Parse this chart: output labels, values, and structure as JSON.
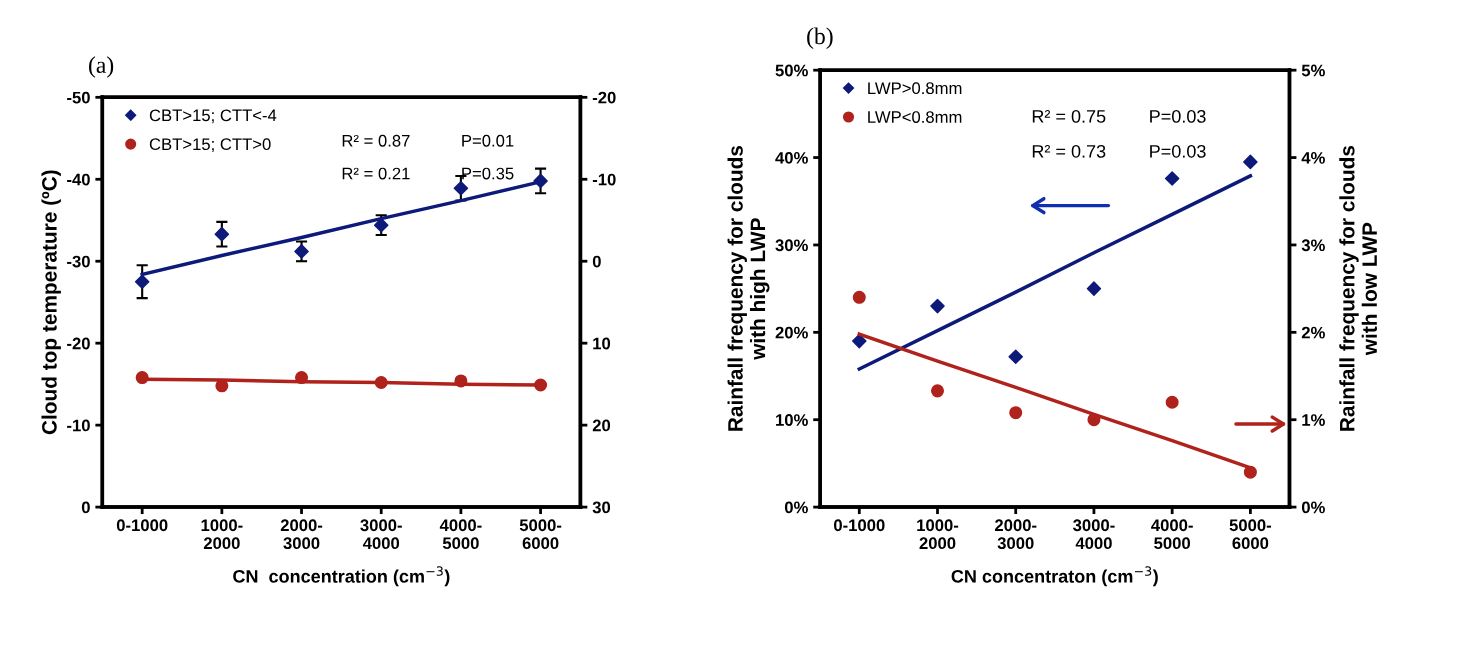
{
  "chart_data": [
    {
      "type": "scatter",
      "title": "(a)",
      "xlabel": "CN  concentration (cm$^{−3}$)",
      "ylabel": "Cloud top temperature (ºC)",
      "categories": [
        "0-1000",
        "1000-\n2000",
        "2000-\n3000",
        "3000-\n4000",
        "4000-\n5000",
        "5000-\n6000"
      ],
      "ylim": [
        0,
        -50
      ],
      "yticks": [
        0,
        -10,
        -20,
        -30,
        -40,
        -50
      ],
      "y2lim": [
        30,
        -20
      ],
      "y2ticks": [
        30,
        20,
        10,
        0,
        -10,
        -20
      ],
      "grid": false,
      "legend": "top left",
      "series": [
        {
          "name": "CBT>15; CTT<-4",
          "marker": "diamond",
          "color": "#0d1a7a",
          "values": [
            -27.5,
            -33.3,
            -31.2,
            -34.4,
            -38.9,
            -39.8
          ],
          "errors": [
            2.0,
            1.5,
            1.2,
            1.2,
            1.5,
            1.5
          ]
        },
        {
          "name": "CBT>15; CTT>0",
          "marker": "circle",
          "axis": "y2",
          "color": "#b0221c",
          "values": [
            14.2,
            15.2,
            14.2,
            14.8,
            14.6,
            15.1
          ]
        },
        {
          "type": "line",
          "marker": "none",
          "color": "#0d1a7a",
          "values": [
            -28.4,
            -30.7,
            -32.9,
            -35.2,
            -37.4,
            -39.7
          ]
        },
        {
          "type": "line",
          "marker": "none",
          "axis": "y2",
          "color": "#b0221c",
          "values": [
            14.4,
            14.5,
            14.7,
            14.8,
            15.0,
            15.1
          ]
        }
      ],
      "annotations": [
        "R² = 0.87",
        "R² = 0.21",
        "P=0.01",
        "P=0.35"
      ]
    },
    {
      "type": "scatter",
      "title": "(b)",
      "xlabel": "CN concentraton (cm$^{−3}$)",
      "ylabel": "Rainfall frequency for clouds\nwith high LWP",
      "y2label": "Rainfall frequency for clouds\nwith low LWP",
      "categories": [
        "0-1000",
        "1000-\n2000",
        "2000-\n3000",
        "3000-\n4000",
        "4000-\n5000",
        "5000-\n6000"
      ],
      "ylim": [
        0,
        50
      ],
      "yticks": [
        {
          "value": 0,
          "label": "0%"
        },
        {
          "value": 10,
          "label": "10%"
        },
        {
          "value": 20,
          "label": "20%"
        },
        {
          "value": 30,
          "label": "30%"
        },
        {
          "value": 40,
          "label": "40%"
        },
        {
          "value": 50,
          "label": "50%"
        }
      ],
      "y2lim": [
        0,
        5
      ],
      "y2ticks": [
        {
          "value": 0,
          "label": "0%"
        },
        {
          "value": 1,
          "label": "1%"
        },
        {
          "value": 2,
          "label": "2%"
        },
        {
          "value": 3,
          "label": "3%"
        },
        {
          "value": 4,
          "label": "4%"
        },
        {
          "value": 5,
          "label": "5%"
        }
      ],
      "grid": false,
      "legend": "top left",
      "series": [
        {
          "name": "LWP>0.8mm",
          "marker": "diamond",
          "color": "#0d1a7a",
          "values": [
            19.0,
            23.0,
            17.2,
            25.0,
            37.6,
            39.5
          ]
        },
        {
          "name": "LWP<0.8mm",
          "marker": "circle",
          "axis": "y2",
          "color": "#b0221c",
          "values": [
            2.4,
            1.33,
            1.08,
            1.0,
            1.2,
            0.4
          ]
        },
        {
          "type": "line",
          "marker": "none",
          "color": "#0d1a7a",
          "values": [
            15.8,
            20.2,
            24.6,
            29.1,
            33.5,
            37.9
          ]
        },
        {
          "type": "line",
          "marker": "none",
          "axis": "y2",
          "color": "#b0221c",
          "values": [
            1.98,
            1.67,
            1.37,
            1.06,
            0.76,
            0.45
          ]
        }
      ],
      "annotations": [
        "R² = 0.75",
        "R² = 0.73",
        "P=0.03",
        "P=0.03"
      ]
    }
  ]
}
